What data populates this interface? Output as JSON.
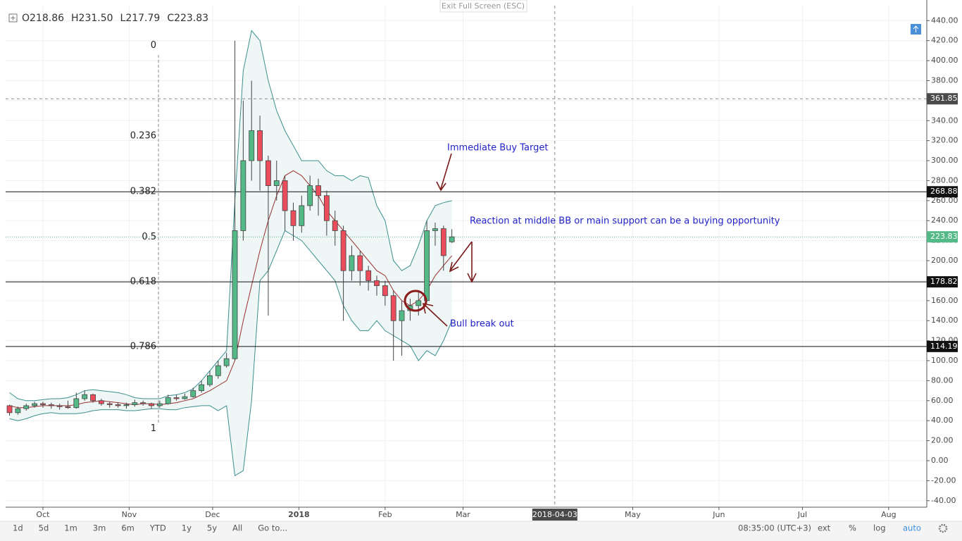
{
  "top_bar": {
    "exit_button": "Exit Full Screen (ESC)",
    "ohlc": [
      "O218.86",
      "H231.50",
      "L217.79",
      "C223.83"
    ]
  },
  "chart_data": {
    "type": "candlestick",
    "x": [
      -12,
      -9,
      -6,
      -3,
      0,
      3,
      6,
      9,
      12,
      15,
      18,
      21,
      24,
      27,
      30,
      33,
      36,
      39,
      42,
      45,
      48,
      51,
      54,
      57,
      60,
      63,
      66,
      69,
      72,
      75,
      78,
      81,
      84,
      87,
      90,
      93,
      96,
      99,
      102,
      105,
      108,
      111,
      114,
      117,
      120,
      123,
      126,
      129,
      132,
      135,
      138,
      141,
      144,
      147
    ],
    "open": [
      55,
      48,
      52,
      55,
      57,
      56,
      55,
      54,
      53,
      62,
      66,
      60,
      57,
      56,
      55,
      56,
      58,
      57,
      55,
      57,
      63,
      62,
      64,
      70,
      76,
      85,
      95,
      102,
      230,
      300,
      330,
      300,
      275,
      280,
      250,
      235,
      255,
      275,
      265,
      240,
      230,
      190,
      205,
      190,
      180,
      175,
      165,
      140,
      150,
      155,
      160,
      230,
      232,
      218.86
    ],
    "high": [
      56,
      54,
      57,
      59,
      59,
      58,
      57,
      60,
      68,
      70,
      67,
      62,
      59,
      58,
      58,
      61,
      60,
      58,
      60,
      66,
      66,
      67,
      73,
      80,
      90,
      100,
      108,
      420,
      360,
      380,
      345,
      305,
      300,
      285,
      258,
      265,
      285,
      282,
      270,
      250,
      235,
      215,
      210,
      195,
      185,
      180,
      170,
      160,
      162,
      170,
      240,
      238,
      235,
      231.5
    ],
    "low": [
      45,
      46,
      50,
      53,
      53,
      52,
      51,
      52,
      52,
      60,
      58,
      55,
      53,
      53,
      52,
      54,
      55,
      52,
      53,
      56,
      60,
      61,
      63,
      68,
      74,
      82,
      93,
      100,
      220,
      280,
      270,
      145,
      260,
      230,
      220,
      228,
      250,
      245,
      225,
      215,
      140,
      180,
      175,
      170,
      165,
      155,
      100,
      105,
      140,
      145,
      158,
      215,
      190,
      217.79
    ],
    "close": [
      48,
      52,
      55,
      57,
      56,
      55,
      54,
      53,
      62,
      66,
      60,
      57,
      56,
      55,
      56,
      58,
      57,
      55,
      57,
      63,
      62,
      64,
      70,
      76,
      85,
      95,
      102,
      230,
      300,
      330,
      300,
      275,
      280,
      250,
      235,
      255,
      275,
      265,
      240,
      230,
      190,
      205,
      190,
      180,
      175,
      165,
      140,
      150,
      155,
      160,
      230,
      232,
      205,
      223.83
    ],
    "up_color": "#53b987",
    "down_color": "#eb4d5c",
    "bands": {
      "fill": "#eef6f6",
      "upper": {
        "color": "#3d8f8f",
        "values": [
          68,
          62,
          60,
          60,
          61,
          62,
          62,
          63,
          66,
          70,
          71,
          70,
          69,
          68,
          66,
          63,
          62,
          62,
          62,
          65,
          66,
          68,
          72,
          80,
          90,
          100,
          110,
          260,
          390,
          430,
          420,
          380,
          350,
          330,
          315,
          300,
          300,
          300,
          290,
          285,
          285,
          280,
          285,
          283,
          255,
          240,
          200,
          190,
          195,
          215,
          240,
          255,
          258,
          260
        ]
      },
      "middle": {
        "color": "#9b3030",
        "values": [
          55,
          53,
          53,
          54,
          55,
          55,
          55,
          55,
          56,
          58,
          59,
          60,
          59,
          58,
          57,
          56,
          57,
          57,
          56,
          57,
          58,
          60,
          62,
          66,
          70,
          75,
          80,
          100,
          140,
          175,
          210,
          240,
          265,
          285,
          290,
          285,
          275,
          265,
          250,
          240,
          230,
          220,
          210,
          200,
          190,
          185,
          170,
          160,
          155,
          160,
          170,
          185,
          195,
          205
        ]
      },
      "lower": {
        "color": "#3d8f8f",
        "values": [
          42,
          40,
          42,
          45,
          47,
          48,
          47,
          47,
          47,
          48,
          50,
          51,
          51,
          51,
          50,
          50,
          51,
          52,
          52,
          51,
          51,
          53,
          54,
          55,
          55,
          50,
          55,
          -15,
          -10,
          60,
          180,
          190,
          210,
          230,
          225,
          220,
          210,
          200,
          190,
          180,
          155,
          140,
          130,
          130,
          140,
          130,
          125,
          120,
          115,
          100,
          110,
          105,
          120,
          140
        ]
      }
    },
    "xlim": [
      -13.4,
      317.7
    ],
    "xticks": [
      {
        "value": 0,
        "label": "Oct"
      },
      {
        "value": 31,
        "label": "Nov"
      },
      {
        "value": 61,
        "label": "Dec"
      },
      {
        "value": 92,
        "label": "2018"
      },
      {
        "value": 123,
        "label": "Feb"
      },
      {
        "value": 151,
        "label": "Mar"
      },
      {
        "value": 212,
        "label": "May"
      },
      {
        "value": 243,
        "label": "Jun"
      },
      {
        "value": 273,
        "label": "Jul"
      },
      {
        "value": 304,
        "label": "Aug"
      }
    ],
    "crosshair_x": {
      "value": 184,
      "label": "2018-04-03"
    },
    "ylim": [
      -46.5,
      455
    ],
    "yticks": [
      {
        "value": -40,
        "label": "-40.00"
      },
      {
        "value": -20,
        "label": "-20.00"
      },
      {
        "value": 0,
        "label": "0.00"
      },
      {
        "value": 20,
        "label": "20.00"
      },
      {
        "value": 40,
        "label": "40.00"
      },
      {
        "value": 60,
        "label": "60.00"
      },
      {
        "value": 80,
        "label": "80.00"
      },
      {
        "value": 100,
        "label": "100.00"
      },
      {
        "value": 120,
        "label": "120.00"
      },
      {
        "value": 140,
        "label": "140.00"
      },
      {
        "value": 160,
        "label": "160.00"
      },
      {
        "value": 180,
        "label": "180.00"
      },
      {
        "value": 200,
        "label": "200.00"
      },
      {
        "value": 220,
        "label": "220.00"
      },
      {
        "value": 240,
        "label": "240.00"
      },
      {
        "value": 260,
        "label": "260.00"
      },
      {
        "value": 280,
        "label": "280.00"
      },
      {
        "value": 300,
        "label": "300.00"
      },
      {
        "value": 320,
        "label": "320.00"
      },
      {
        "value": 340,
        "label": "340.00"
      },
      {
        "value": 360,
        "label": "360.00"
      },
      {
        "value": 380,
        "label": "380.00"
      },
      {
        "value": 400,
        "label": "400.00"
      },
      {
        "value": 420,
        "label": "420.00"
      },
      {
        "value": 440,
        "label": "440.00"
      }
    ],
    "grid": true,
    "crosshair_price": 361.85,
    "last_price": 223.83,
    "price_levels": [
      268.88,
      178.82,
      114.19
    ],
    "fib_levels": [
      {
        "value": 415.1,
        "label": "0"
      },
      {
        "value": 324.7,
        "label": "0.236"
      },
      {
        "value": 268.88,
        "label": "0.382"
      },
      {
        "value": 223.6,
        "label": "0.5"
      },
      {
        "value": 178.82,
        "label": "0.618"
      },
      {
        "value": 114.19,
        "label": "0.786"
      },
      {
        "value": 32.2,
        "label": "1"
      }
    ],
    "annotations": [
      "Immediate Buy Target",
      "Reaction at middle BB or main support can be a buying opportunity",
      "Bull break out"
    ]
  },
  "bottom_bar": {
    "ranges": [
      "1d",
      "5d",
      "1m",
      "3m",
      "6m",
      "YTD",
      "1y",
      "5y",
      "All",
      "Go to..."
    ],
    "time": "08:35:00 (UTC+3)",
    "options": [
      "ext",
      "%",
      "log",
      "auto"
    ]
  }
}
